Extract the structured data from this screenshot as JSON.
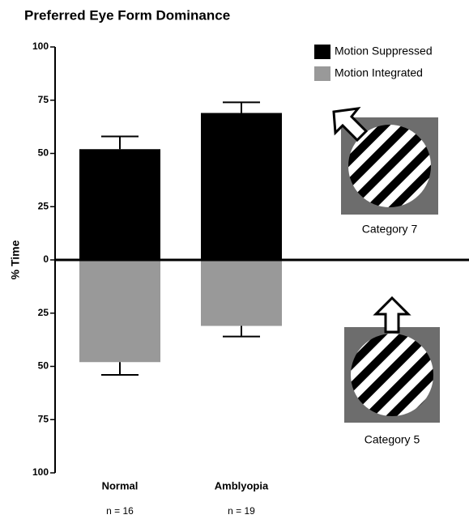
{
  "chart_data": {
    "type": "diverging-bar",
    "title": "Preferred Eye Form Dominance",
    "y_label": "% Time",
    "categories": [
      "Normal",
      "Amblyopia"
    ],
    "sample_sizes": [
      "n = 16",
      "n = 19"
    ],
    "series": [
      {
        "name": "Motion Suppressed",
        "color": "#000000",
        "values": [
          52,
          69
        ],
        "errors": [
          6,
          5
        ]
      },
      {
        "name": "Motion Integrated",
        "color": "#999999",
        "values": [
          -48,
          -31
        ],
        "errors": [
          6,
          5
        ]
      }
    ],
    "ylim": [
      -100,
      100
    ],
    "yticks": [
      {
        "value": -100,
        "label": "100"
      },
      {
        "value": -75,
        "label": "75"
      },
      {
        "value": -50,
        "label": "50"
      },
      {
        "value": -25,
        "label": "25"
      },
      0,
      25,
      50,
      75,
      100
    ],
    "grid": false,
    "legend": "top-right",
    "annotations": [
      "Category 7",
      "Category 5"
    ]
  }
}
